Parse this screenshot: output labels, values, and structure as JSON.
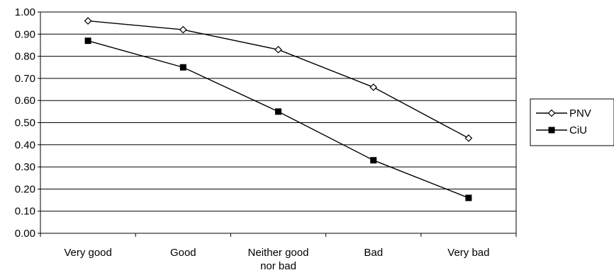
{
  "chart_data": {
    "type": "line",
    "title": "",
    "xlabel": "",
    "ylabel": "",
    "categories": [
      [
        "Very good"
      ],
      [
        "Good"
      ],
      [
        "Neither good",
        "nor bad"
      ],
      [
        "Bad"
      ],
      [
        "Very bad"
      ]
    ],
    "ylim": [
      0,
      1
    ],
    "yticks": [
      "0.00",
      "0.10",
      "0.20",
      "0.30",
      "0.40",
      "0.50",
      "0.60",
      "0.70",
      "0.80",
      "0.90",
      "1.00"
    ],
    "grid": true,
    "legend_position": "right",
    "series": [
      {
        "name": "PNV",
        "marker": "diamond",
        "color": "#000000",
        "values": [
          0.96,
          0.92,
          0.83,
          0.66,
          0.43
        ]
      },
      {
        "name": "CiU",
        "marker": "square",
        "color": "#000000",
        "values": [
          0.87,
          0.75,
          0.55,
          0.33,
          0.16
        ]
      }
    ]
  }
}
